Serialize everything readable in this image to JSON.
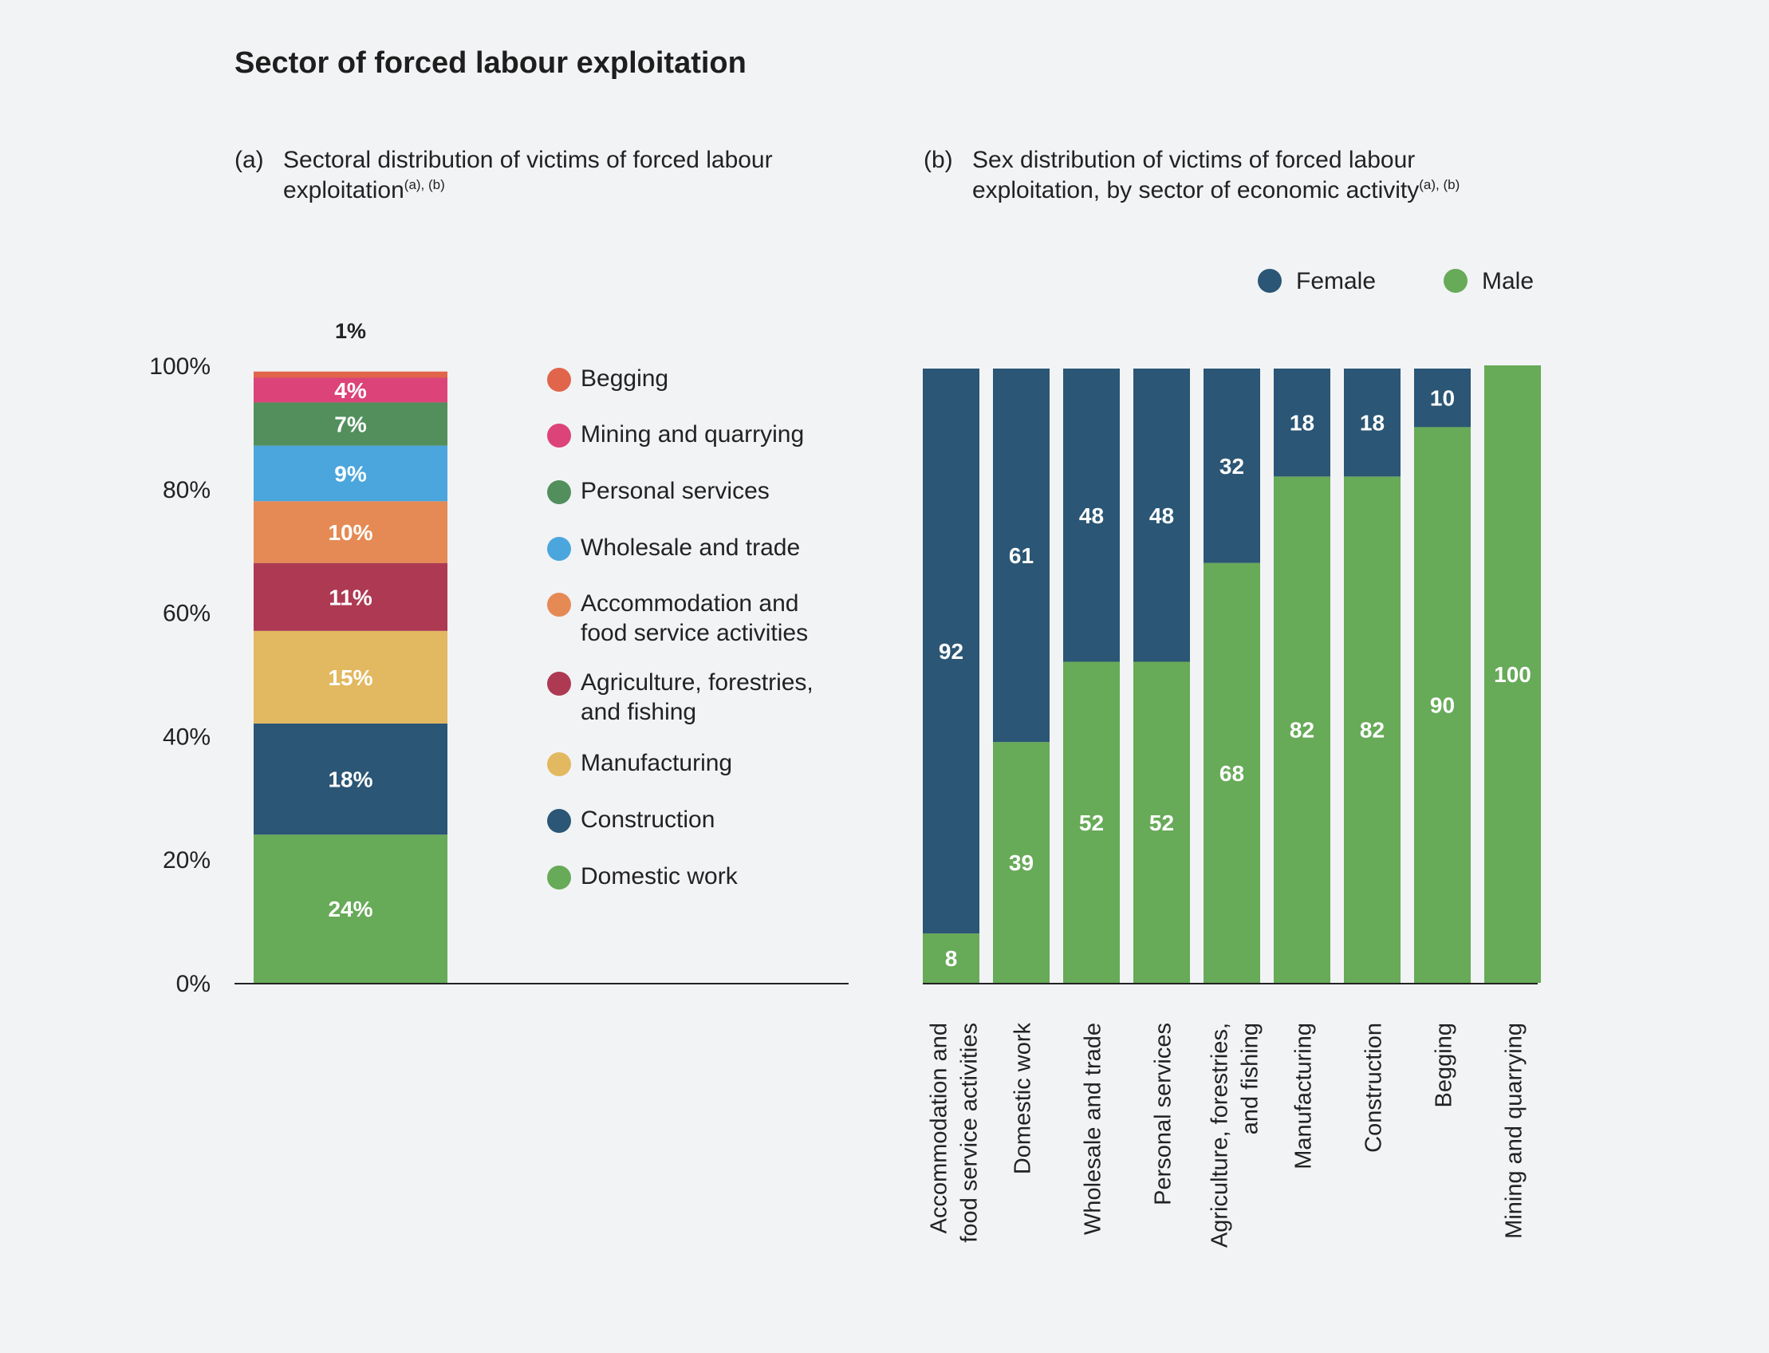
{
  "title": "Sector of forced labour exploitation",
  "subtitle_a": {
    "letter": "(a)",
    "line1": "Sectoral distribution of victims of forced labour",
    "line2": "exploitation",
    "sup": "(a), (b)"
  },
  "subtitle_b": {
    "letter": "(b)",
    "line1": "Sex distribution of victims of forced labour",
    "line2": "exploitation, by sector of economic activity",
    "sup": "(a), (b)"
  },
  "colors": {
    "begging": "#e0654b",
    "mining": "#dc4378",
    "personal": "#528f5d",
    "wholesale": "#4aa6dc",
    "accommodation": "#e58a55",
    "agriculture": "#ad3a52",
    "manufacturing": "#e2b860",
    "construction": "#2b5675",
    "domestic": "#67aa58",
    "female": "#2b5675",
    "male": "#67aa58"
  },
  "chart_data": [
    {
      "type": "bar",
      "subtype": "stacked-100",
      "ylim": [
        0,
        100
      ],
      "y_ticks": [
        "0%",
        "20%",
        "40%",
        "60%",
        "80%",
        "100%"
      ],
      "segments": [
        {
          "name": "Domestic work",
          "value": 24,
          "label": "24%",
          "color_key": "domestic"
        },
        {
          "name": "Construction",
          "value": 18,
          "label": "18%",
          "color_key": "construction"
        },
        {
          "name": "Manufacturing",
          "value": 15,
          "label": "15%",
          "color_key": "manufacturing"
        },
        {
          "name": "Agriculture, forestries, and fishing",
          "value": 11,
          "label": "11%",
          "color_key": "agriculture"
        },
        {
          "name": "Accommodation and food service activities",
          "value": 10,
          "label": "10%",
          "color_key": "accommodation"
        },
        {
          "name": "Wholesale and trade",
          "value": 9,
          "label": "9%",
          "color_key": "wholesale"
        },
        {
          "name": "Personal services",
          "value": 7,
          "label": "7%",
          "color_key": "personal"
        },
        {
          "name": "Mining and quarrying",
          "value": 4,
          "label": "4%",
          "color_key": "mining"
        },
        {
          "name": "Begging",
          "value": 1,
          "label": "1%",
          "color_key": "begging"
        }
      ],
      "legend": [
        {
          "line1": "Begging",
          "line2": "",
          "color_key": "begging"
        },
        {
          "line1": "Mining and quarrying",
          "line2": "",
          "color_key": "mining"
        },
        {
          "line1": "Personal services",
          "line2": "",
          "color_key": "personal"
        },
        {
          "line1": "Wholesale and trade",
          "line2": "",
          "color_key": "wholesale"
        },
        {
          "line1": "Accommodation and",
          "line2": "food service activities",
          "color_key": "accommodation"
        },
        {
          "line1": "Agriculture, forestries,",
          "line2": "and fishing",
          "color_key": "agriculture"
        },
        {
          "line1": "Manufacturing",
          "line2": "",
          "color_key": "manufacturing"
        },
        {
          "line1": "Construction",
          "line2": "",
          "color_key": "construction"
        },
        {
          "line1": "Domestic work",
          "line2": "",
          "color_key": "domestic"
        }
      ]
    },
    {
      "type": "bar",
      "subtype": "stacked-100",
      "ylim": [
        0,
        100
      ],
      "legend": [
        {
          "name": "Female",
          "color_key": "female"
        },
        {
          "name": "Male",
          "color_key": "male"
        }
      ],
      "categories": [
        [
          "Accommodation and",
          "food service activities"
        ],
        [
          "Domestic work"
        ],
        [
          "Wholesale and trade"
        ],
        [
          "Personal services"
        ],
        [
          "Agriculture, forestries,",
          "and fishing"
        ],
        [
          "Manufacturing"
        ],
        [
          "Construction"
        ],
        [
          "Begging"
        ],
        [
          "Mining and quarrying"
        ]
      ],
      "series": [
        {
          "name": "Male",
          "values": [
            8,
            39,
            52,
            52,
            68,
            82,
            82,
            90,
            100
          ]
        },
        {
          "name": "Female",
          "values": [
            92,
            61,
            48,
            48,
            32,
            18,
            18,
            10,
            0
          ]
        }
      ]
    }
  ]
}
